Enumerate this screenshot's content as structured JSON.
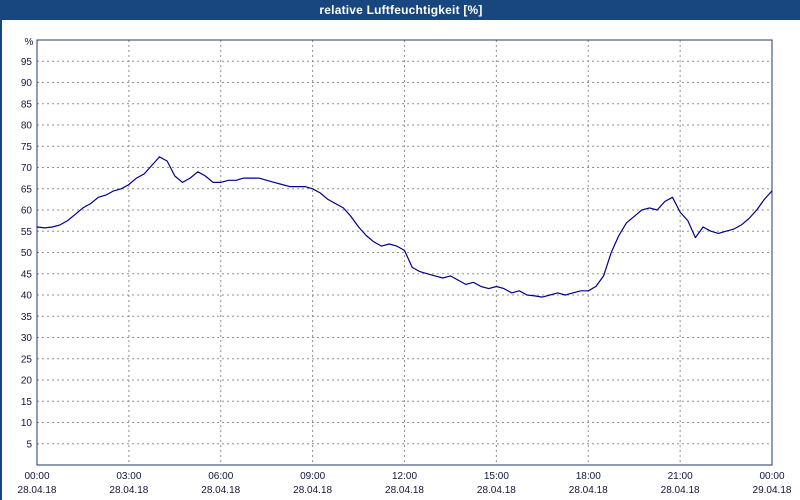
{
  "title_bar": {
    "title": "relative Luftfeuchtigkeit [%]"
  },
  "chart_data": {
    "type": "line",
    "title": "relative Luftfeuchtigkeit [%]",
    "xlabel": "",
    "ylabel": "%",
    "ylim": [
      0,
      100
    ],
    "xlim": [
      0,
      24
    ],
    "grid": true,
    "legend": "none",
    "y_ticks": [
      5,
      10,
      15,
      20,
      25,
      30,
      35,
      40,
      45,
      50,
      55,
      60,
      65,
      70,
      75,
      80,
      85,
      90,
      95
    ],
    "x_ticks": [
      {
        "hours": 0,
        "time": "00:00",
        "date": "28.04.18"
      },
      {
        "hours": 3,
        "time": "03:00",
        "date": "28.04.18"
      },
      {
        "hours": 6,
        "time": "06:00",
        "date": "28.04.18"
      },
      {
        "hours": 9,
        "time": "09:00",
        "date": "28.04.18"
      },
      {
        "hours": 12,
        "time": "12:00",
        "date": "28.04.18"
      },
      {
        "hours": 15,
        "time": "15:00",
        "date": "28.04.18"
      },
      {
        "hours": 18,
        "time": "18:00",
        "date": "28.04.18"
      },
      {
        "hours": 21,
        "time": "21:00",
        "date": "28.04.18"
      },
      {
        "hours": 24,
        "time": "00:00",
        "date": "29.04.18"
      }
    ],
    "series": [
      {
        "name": "relative Luftfeuchtigkeit",
        "x_hours": [
          0,
          0.25,
          0.5,
          0.75,
          1,
          1.25,
          1.5,
          1.75,
          2,
          2.25,
          2.5,
          2.75,
          3,
          3.25,
          3.5,
          3.75,
          4,
          4.25,
          4.5,
          4.75,
          5,
          5.25,
          5.5,
          5.75,
          6,
          6.25,
          6.5,
          6.75,
          7,
          7.25,
          7.5,
          7.75,
          8,
          8.25,
          8.5,
          8.75,
          9,
          9.25,
          9.5,
          9.75,
          10,
          10.25,
          10.5,
          10.75,
          11,
          11.25,
          11.5,
          11.75,
          12,
          12.25,
          12.5,
          12.75,
          13,
          13.25,
          13.5,
          13.75,
          14,
          14.25,
          14.5,
          14.75,
          15,
          15.25,
          15.5,
          15.75,
          16,
          16.25,
          16.5,
          16.75,
          17,
          17.25,
          17.5,
          17.75,
          18,
          18.25,
          18.5,
          18.75,
          19,
          19.25,
          19.5,
          19.75,
          20,
          20.25,
          20.5,
          20.75,
          21,
          21.25,
          21.5,
          21.75,
          22,
          22.25,
          22.5,
          22.75,
          23,
          23.25,
          23.5,
          23.75,
          24
        ],
        "values": [
          56,
          55.8,
          56,
          56.5,
          57.5,
          59,
          60.5,
          61.5,
          63,
          63.5,
          64.5,
          65,
          66,
          67.5,
          68.5,
          70.5,
          72.5,
          71.5,
          68,
          66.5,
          67.5,
          69,
          68,
          66.5,
          66.5,
          67,
          67,
          67.5,
          67.5,
          67.5,
          67,
          66.5,
          66,
          65.5,
          65.5,
          65.5,
          65,
          64,
          62.5,
          61.5,
          60.5,
          58.5,
          56,
          54,
          52.5,
          51.5,
          52,
          51.5,
          50.5,
          46.5,
          45.5,
          45,
          44.5,
          44,
          44.5,
          43.5,
          42.5,
          43,
          42,
          41.5,
          42,
          41.5,
          40.5,
          41,
          40,
          39.8,
          39.5,
          40,
          40.5,
          40,
          40.5,
          41,
          41,
          42,
          44.5,
          50,
          54,
          57,
          58.5,
          60,
          60.5,
          60,
          62,
          63,
          59.5,
          57.5,
          53.5,
          56,
          55,
          54.5,
          55,
          55.5,
          56.5,
          58,
          60,
          62.5,
          64.5
        ]
      }
    ],
    "colors": {
      "line": "#00008b",
      "grid": "#909090",
      "frame": "#1f3864",
      "text": "#14143c",
      "title_bg": "#17477e",
      "title_text": "#ffffff",
      "background": "#ffffff"
    }
  }
}
